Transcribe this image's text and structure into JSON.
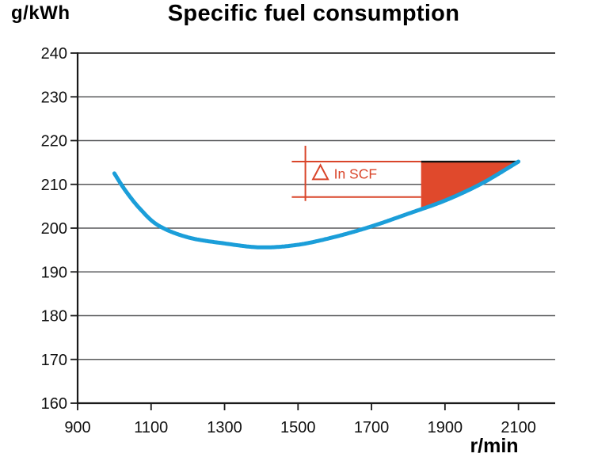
{
  "chart_data": {
    "type": "line",
    "title": "Specific fuel consumption",
    "y_unit": "g/kWh",
    "x_unit": "r/min",
    "xlabel": "r/min",
    "ylabel": "g/kWh",
    "xlim": [
      900,
      2200
    ],
    "ylim": [
      160,
      240
    ],
    "x_ticks": [
      900,
      1100,
      1300,
      1500,
      1700,
      1900,
      2100
    ],
    "y_ticks": [
      160,
      170,
      180,
      190,
      200,
      210,
      220,
      230,
      240
    ],
    "grid": "horizontal",
    "legend": "none",
    "background": "#ffffff",
    "axis_color": "#1a1a1a",
    "grid_color": "#58595b",
    "series": [
      {
        "name": "specific-fuel-consumption-curve",
        "color": "#1b9ed9",
        "points": [
          [
            1000,
            212.5
          ],
          [
            1030,
            208.6
          ],
          [
            1070,
            204.4
          ],
          [
            1120,
            200.6
          ],
          [
            1200,
            197.9
          ],
          [
            1300,
            196.5
          ],
          [
            1400,
            195.6
          ],
          [
            1500,
            196.2
          ],
          [
            1600,
            198.0
          ],
          [
            1700,
            200.4
          ],
          [
            1800,
            203.3
          ],
          [
            1900,
            206.3
          ],
          [
            2000,
            210.2
          ],
          [
            2100,
            215.2
          ]
        ]
      }
    ],
    "annotation": {
      "symbol": "triangle-outline",
      "label": "In SCF",
      "color": "#d9452a",
      "upper_value": 215.2,
      "lower_value": 207.1,
      "marker_x": 1520,
      "lines_x_start": 1483,
      "lines_x_end": 1835,
      "fill_x_start": 1835,
      "fill_x_end": 2100,
      "fill_color": "#e0492c",
      "cap_line_color": "#111111"
    }
  }
}
